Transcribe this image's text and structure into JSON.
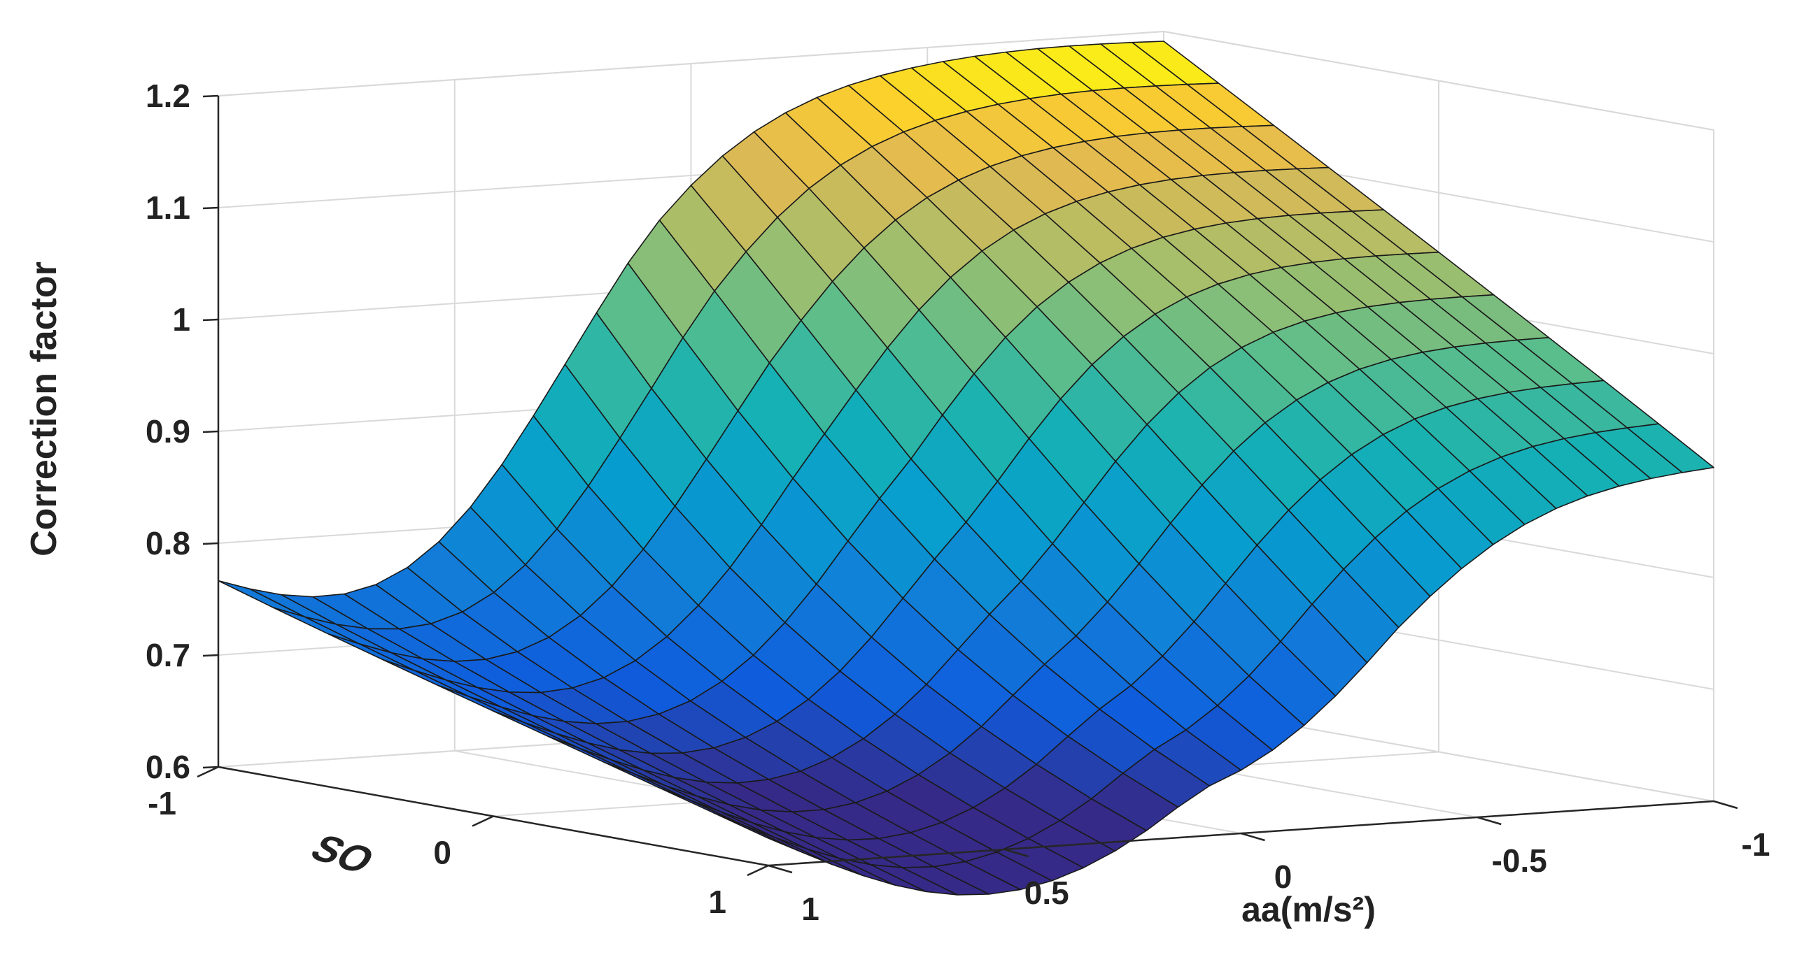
{
  "chart_data": {
    "type": "surface",
    "title": "",
    "zlabel": "Correction factor",
    "xlabel": "aa(m/s²)",
    "ylabel": "SO",
    "zlim": [
      0.6,
      1.2
    ],
    "xlim": [
      -1,
      1
    ],
    "ylim": [
      -1,
      1
    ],
    "z_ticks": [
      "0.6",
      "0.7",
      "0.8",
      "0.9",
      "1",
      "1.1",
      "1.2"
    ],
    "x_ticks": [
      "1",
      "0.5",
      "0",
      "-0.5",
      "-1"
    ],
    "y_ticks": [
      "-1",
      "0",
      "1"
    ],
    "grid": true,
    "colormap": "parula",
    "mesh": {
      "aa_steps": 31,
      "so_steps": 11
    },
    "surface_corners": {
      "aa_1_so_-1": 0.76,
      "aa_1_so_1": 0.62,
      "aa_-1_so_-1": 1.19,
      "aa_-1_so_1": 0.91
    },
    "edge_profiles": {
      "so_-1_along_aa_from_1_to_-1": [
        0.76,
        0.73,
        0.71,
        0.7,
        0.72,
        0.78,
        0.86,
        0.93,
        1.0,
        1.06,
        1.11,
        1.14,
        1.16,
        1.17,
        1.18,
        1.185,
        1.19
      ],
      "so_1_along_aa_from_1_to_-1": [
        0.62,
        0.63,
        0.64,
        0.66,
        0.7,
        0.75,
        0.8,
        0.84,
        0.87,
        0.89,
        0.9,
        0.905,
        0.91,
        0.91,
        0.91,
        0.91,
        0.91
      ]
    }
  }
}
